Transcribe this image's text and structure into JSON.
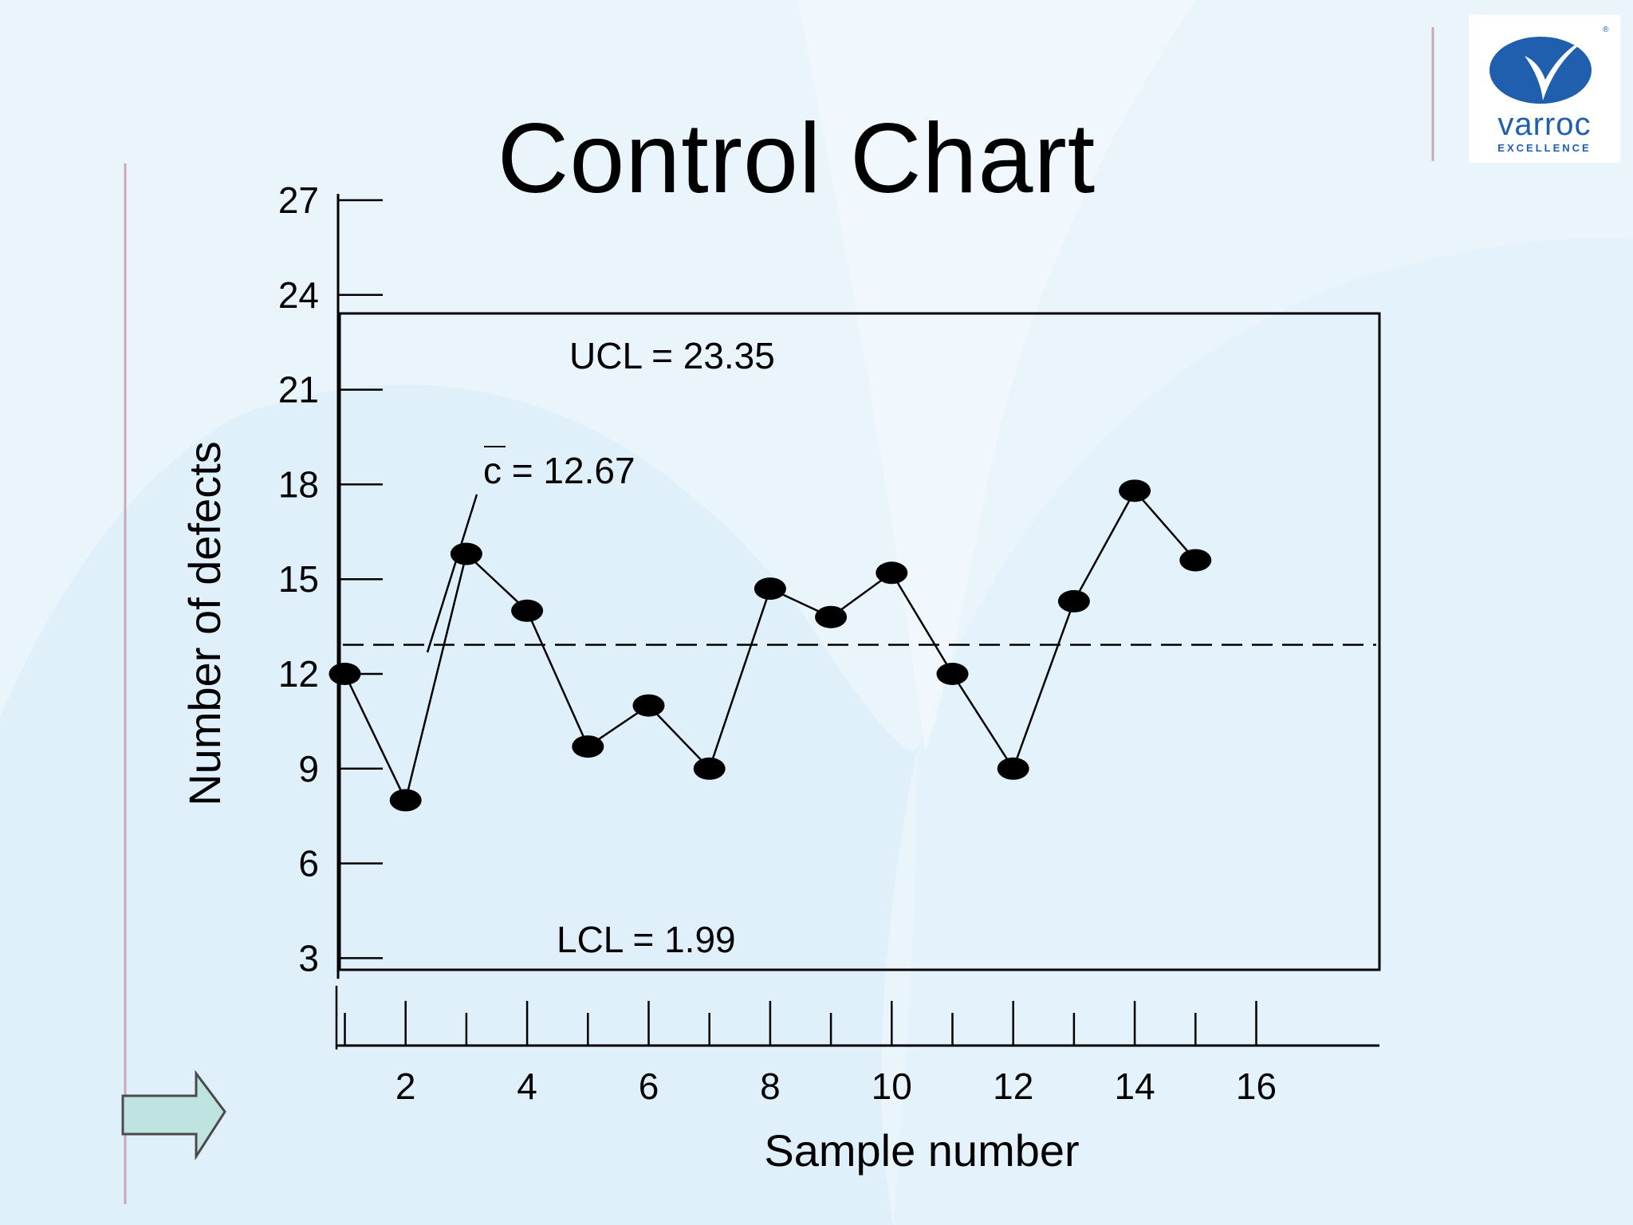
{
  "slide": {
    "title": "Control Chart",
    "logo": {
      "brand": "varroc",
      "tagline": "EXCELLENCE",
      "registered": "®"
    },
    "colors": {
      "background": "#eaf4fb",
      "accent_blue": "#1f5fae",
      "arrow_fill": "#bfe3e0",
      "divider": "#c9a9b5"
    },
    "icons": {
      "logo": "varroc-logo-icon",
      "next": "next-arrow-icon"
    }
  },
  "chart_data": {
    "type": "line",
    "xlabel": "Sample number",
    "ylabel": "Number of defects",
    "x_ticks": [
      2,
      4,
      6,
      8,
      10,
      12,
      14,
      16
    ],
    "y_ticks": [
      3,
      6,
      9,
      12,
      15,
      18,
      21,
      24,
      27
    ],
    "xlim": [
      0,
      16
    ],
    "ylim": [
      2.6,
      27.2
    ],
    "series": [
      {
        "x": [
          1,
          2,
          3,
          4,
          5,
          6,
          7,
          8,
          9,
          10,
          11,
          12,
          13,
          14,
          15
        ],
        "values": [
          12,
          8,
          15.8,
          14,
          9.7,
          11,
          9,
          14.7,
          13.8,
          15.2,
          12,
          9,
          14.3,
          17.8,
          15.6
        ]
      }
    ],
    "center_line": {
      "label": "c = 12.67",
      "value": 12.67,
      "style": "dashed"
    },
    "ucl": {
      "label": "UCL = 23.35",
      "value": 23.35
    },
    "lcl": {
      "label": "LCL = 1.99",
      "value": 1.99
    },
    "grid": false,
    "legend": "none"
  }
}
